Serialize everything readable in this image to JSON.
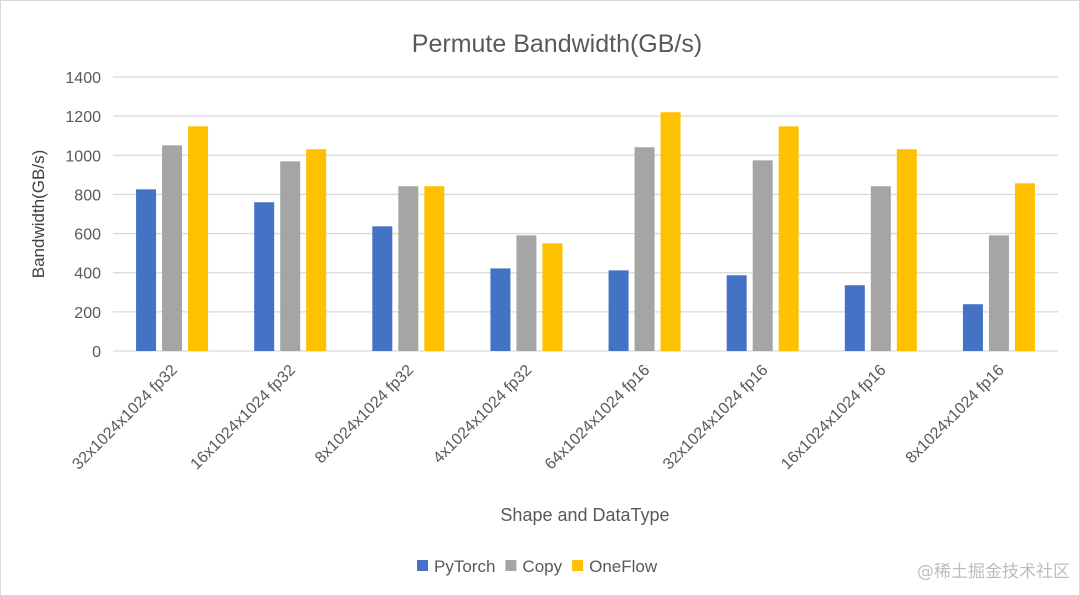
{
  "chart_data": {
    "type": "bar",
    "title": "Permute Bandwidth(GB/s)",
    "xlabel": "Shape and DataType",
    "ylabel": "Bandwidth(GB/s)",
    "ylim": [
      0,
      1400
    ],
    "yticks": [
      0,
      200,
      400,
      600,
      800,
      1000,
      1200,
      1400
    ],
    "grid": true,
    "legend_position": "bottom",
    "categories": [
      "32x1024x1024 fp32",
      "16x1024x1024 fp32",
      "8x1024x1024 fp32",
      "4x1024x1024 fp32",
      "64x1024x1024 fp16",
      "32x1024x1024 fp16",
      "16x1024x1024 fp16",
      "8x1024x1024 fp16"
    ],
    "series": [
      {
        "name": "PyTorch",
        "color": "#4472c4",
        "values": [
          826,
          760,
          637,
          422,
          412,
          387,
          336,
          239
        ]
      },
      {
        "name": "Copy",
        "color": "#a5a5a5",
        "values": [
          1051,
          969,
          842,
          591,
          1041,
          974,
          842,
          591
        ]
      },
      {
        "name": "OneFlow",
        "color": "#ffc000",
        "values": [
          1148,
          1031,
          842,
          550,
          1220,
          1148,
          1031,
          857
        ]
      }
    ]
  },
  "watermark": "@稀土掘金技术社区"
}
